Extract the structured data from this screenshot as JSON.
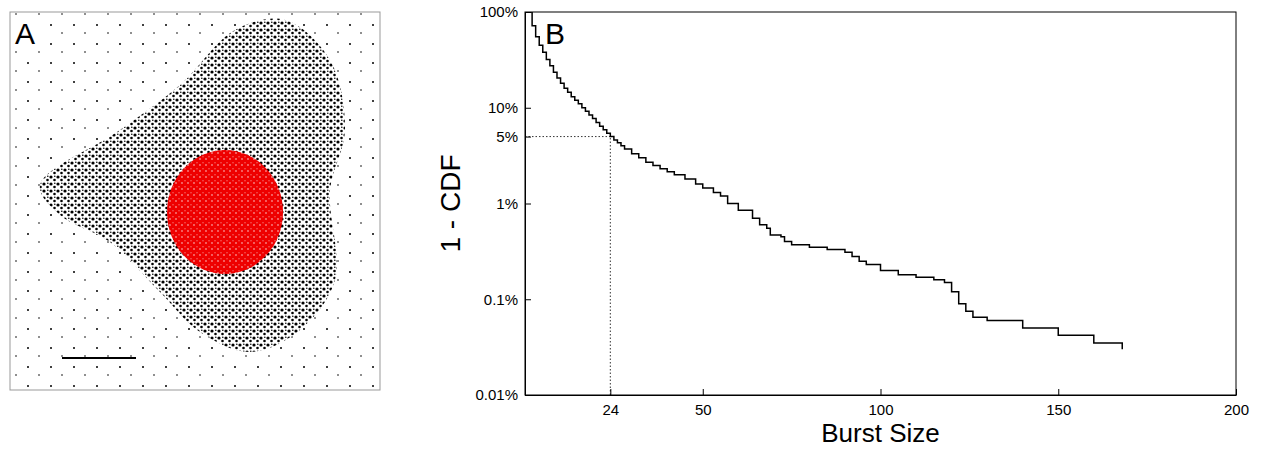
{
  "chart_data": [
    {
      "type": "image",
      "label": "A"
    },
    {
      "type": "line",
      "label": "B",
      "xlabel": "Burst Size",
      "ylabel": "1 - CDF",
      "x": [
        1,
        2,
        3,
        4,
        5,
        6,
        7,
        8,
        9,
        10,
        11,
        12,
        13,
        14,
        15,
        16,
        17,
        18,
        19,
        20,
        21,
        22,
        23,
        24,
        25,
        26,
        27,
        28,
        30,
        32,
        34,
        36,
        38,
        40,
        42,
        45,
        48,
        50,
        53,
        55,
        57,
        60,
        64,
        66,
        68,
        69,
        72,
        73,
        75,
        80,
        85,
        90,
        92,
        94,
        96,
        100,
        105,
        110,
        115,
        118,
        120,
        122,
        124,
        126,
        130,
        140,
        150,
        160,
        168
      ],
      "values": [
        100,
        72,
        55,
        45,
        38,
        32,
        27.5,
        23.5,
        20.5,
        18,
        16,
        14.5,
        13,
        12,
        11,
        10,
        9.2,
        8.4,
        7.7,
        7,
        6.4,
        5.9,
        5.4,
        5,
        4.6,
        4.3,
        4,
        3.7,
        3.3,
        3,
        2.7,
        2.5,
        2.3,
        2.15,
        2,
        1.8,
        1.6,
        1.45,
        1.3,
        1.2,
        1,
        0.85,
        0.7,
        0.6,
        0.55,
        0.47,
        0.45,
        0.4,
        0.37,
        0.35,
        0.33,
        0.31,
        0.28,
        0.25,
        0.23,
        0.2,
        0.18,
        0.17,
        0.16,
        0.15,
        0.12,
        0.09,
        0.075,
        0.065,
        0.06,
        0.05,
        0.042,
        0.035,
        0.03
      ],
      "color": "#000000",
      "line_style": "steps",
      "log": "y",
      "xlim": [
        0,
        200
      ],
      "xticks": [
        24,
        50,
        100,
        150,
        200
      ],
      "ylim": [
        0.01,
        100
      ],
      "yticks": [
        {
          "value": 0.01,
          "label": "0.01%"
        },
        {
          "value": 0.1,
          "label": "0.1%"
        },
        {
          "value": 1,
          "label": "1%"
        },
        {
          "value": 5,
          "label": "5%"
        },
        {
          "value": 10,
          "label": "10%"
        },
        {
          "value": 100,
          "label": "100%"
        }
      ],
      "threshold": {
        "x": 24,
        "y": 5
      }
    }
  ]
}
